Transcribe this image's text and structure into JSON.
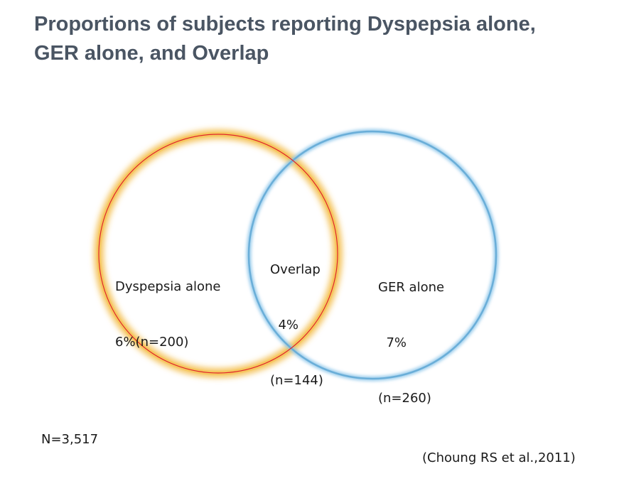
{
  "title": {
    "line1": "Proportions of subjects reporting Dyspepsia alone,",
    "line2": "GER alone, and Overlap"
  },
  "venn": {
    "left_circle": {
      "color": "#e0262a",
      "glow_color": "#f2b432",
      "label_line1": "Dyspepsia alone",
      "label_line2": "6%(n=200)"
    },
    "right_circle": {
      "color": "#6aaed8",
      "glow_color": "#8cc6ea",
      "label_line1": "GER alone",
      "label_line2": "  7%",
      "label_line3": "(n=260)"
    },
    "overlap": {
      "label_line1": "Overlap",
      "label_line2": "  4%",
      "label_line3": "(n=144)"
    }
  },
  "total": "N=3,517",
  "citation": "(Choung RS et al.,2011)",
  "colors": {
    "title": "#4a5563",
    "text": "#1a1a1a"
  }
}
